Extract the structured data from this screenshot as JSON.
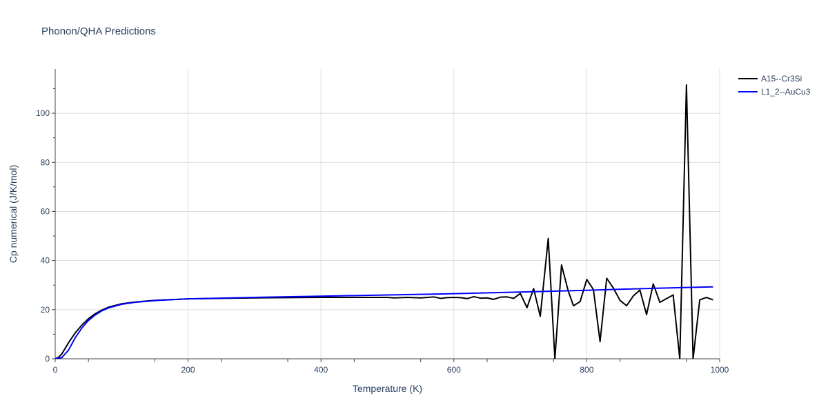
{
  "chart_data": {
    "type": "line",
    "title": "Phonon/QHA Predictions",
    "xlabel": "Temperature (K)",
    "ylabel": "Cp numerical (J/K/mol)",
    "xlim": [
      0,
      1000
    ],
    "ylim": [
      0,
      118
    ],
    "x_ticks": [
      0,
      200,
      400,
      600,
      800,
      1000
    ],
    "y_ticks": [
      0,
      20,
      40,
      60,
      80,
      100
    ],
    "grid": true,
    "legend_position": "top-right",
    "series": [
      {
        "name": "A15--Cr3Si",
        "color": "#000000",
        "x": [
          0,
          5,
          10,
          20,
          30,
          40,
          50,
          60,
          70,
          80,
          100,
          120,
          150,
          200,
          300,
          400,
          500,
          510,
          530,
          550,
          570,
          580,
          590,
          600,
          610,
          620,
          630,
          640,
          650,
          660,
          670,
          680,
          690,
          700,
          710,
          720,
          730,
          742,
          752,
          762,
          772,
          780,
          790,
          800,
          810,
          820,
          830,
          840,
          850,
          860,
          870,
          880,
          890,
          900,
          910,
          930,
          940,
          950,
          960,
          970,
          980,
          990
        ],
        "y": [
          0,
          0.6,
          2,
          6.5,
          10.5,
          13.7,
          16.3,
          18.3,
          19.8,
          21,
          22.4,
          23.1,
          23.8,
          24.4,
          24.8,
          25,
          25,
          24.8,
          25,
          24.8,
          25.2,
          24.6,
          24.9,
          25,
          24.9,
          24.5,
          25.3,
          24.7,
          24.8,
          24.2,
          25.1,
          25.2,
          24.6,
          26.6,
          20.8,
          28.6,
          17.3,
          49,
          0,
          38.2,
          27.7,
          21.6,
          23.3,
          32.3,
          28.2,
          7,
          32.8,
          28.8,
          23.8,
          21.6,
          25.6,
          28,
          18,
          30.5,
          23,
          26,
          0,
          111.5,
          0,
          24,
          25,
          24
        ]
      },
      {
        "name": "L1_2--AuCu3",
        "color": "#0000ff",
        "x": [
          0,
          10,
          20,
          30,
          40,
          50,
          60,
          70,
          80,
          100,
          120,
          150,
          200,
          300,
          400,
          500,
          600,
          700,
          800,
          900,
          990
        ],
        "y": [
          0,
          0.5,
          3.5,
          8.5,
          12.5,
          15.6,
          17.8,
          19.5,
          20.7,
          22.2,
          23,
          23.7,
          24.4,
          25,
          25.5,
          26,
          26.5,
          27.2,
          27.9,
          28.7,
          29.3
        ]
      }
    ]
  }
}
